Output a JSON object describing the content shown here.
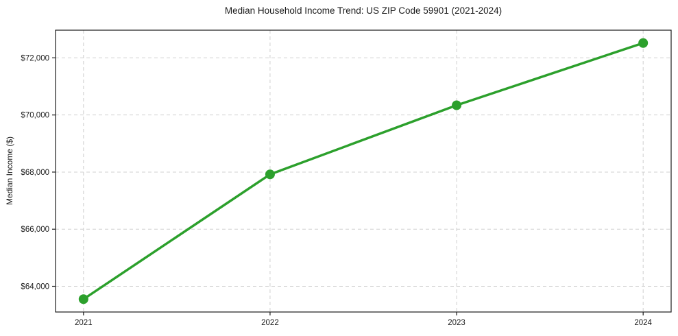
{
  "chart_data": {
    "type": "line",
    "title": "Median Household Income Trend: US ZIP Code 59901 (2021-2024)",
    "xlabel": "",
    "ylabel": "Median Income ($)",
    "x": [
      2021,
      2022,
      2023,
      2024
    ],
    "series": [
      {
        "name": "Median Household Income",
        "values": [
          63550,
          67920,
          70340,
          72520
        ]
      }
    ],
    "xtick_labels": [
      "2021",
      "2022",
      "2023",
      "2024"
    ],
    "yticks": [
      64000,
      66000,
      68000,
      70000,
      72000
    ],
    "ytick_labels": [
      "$64,000",
      "$66,000",
      "$68,000",
      "$70,000",
      "$72,000"
    ],
    "xlim": [
      2020.85,
      2024.15
    ],
    "ylim": [
      63100,
      72970
    ],
    "grid": true,
    "grid_style": "dashed",
    "legend": false,
    "line_color": "#2ca02c",
    "marker": "circle",
    "grid_color": "#cfcfcf",
    "axis_color": "#1a1a1a",
    "background": "#ffffff"
  }
}
